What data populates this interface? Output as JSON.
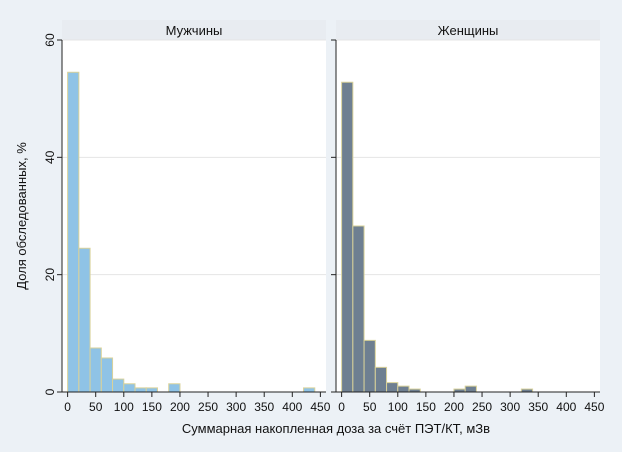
{
  "figure": {
    "ylabel": "Доля обследованных, %",
    "xlabel": "Суммарная накопленная доза за счёт ПЭТ/КТ, мЗв"
  },
  "colors": {
    "background": "#ecf1f6",
    "plot_bg": "#ffffff",
    "strip_bg": "#e8ecf1",
    "bar_edge": "#d9d29a",
    "grid": "#e5e5e5",
    "axis": "#222222"
  },
  "chart_data": [
    {
      "type": "bar",
      "panel": "Мужчины",
      "bar_color": "#8fc3e6",
      "bin_width": 20,
      "x": [
        10,
        30,
        50,
        70,
        90,
        110,
        130,
        150,
        170,
        190,
        210,
        230,
        250,
        270,
        290,
        310,
        330,
        350,
        370,
        390,
        410,
        430
      ],
      "values": [
        54.5,
        24.5,
        7.5,
        5.8,
        2.2,
        1.4,
        0.7,
        0.7,
        0,
        1.4,
        0,
        0,
        0,
        0,
        0,
        0,
        0,
        0,
        0,
        0,
        0,
        0.7
      ],
      "x_ticks": [
        0,
        50,
        100,
        150,
        200,
        250,
        300,
        350,
        400,
        450
      ],
      "y_ticks": [
        0,
        20,
        40,
        60
      ],
      "xlim": [
        -10,
        460
      ],
      "ylim": [
        0,
        60
      ],
      "grid": true
    },
    {
      "type": "bar",
      "panel": "Женщины",
      "bar_color": "#6e7f91",
      "bin_width": 20,
      "x": [
        10,
        30,
        50,
        70,
        90,
        110,
        130,
        150,
        170,
        190,
        210,
        230,
        250,
        270,
        290,
        310,
        330
      ],
      "values": [
        52.8,
        28.3,
        8.8,
        4.2,
        1.6,
        1.0,
        0.5,
        0,
        0,
        0,
        0.5,
        1.0,
        0,
        0,
        0,
        0,
        0.5
      ],
      "x_ticks": [
        0,
        50,
        100,
        150,
        200,
        250,
        300,
        350,
        400,
        450
      ],
      "y_ticks": [
        0,
        20,
        40,
        60
      ],
      "xlim": [
        -10,
        460
      ],
      "ylim": [
        0,
        60
      ],
      "grid": true
    }
  ]
}
